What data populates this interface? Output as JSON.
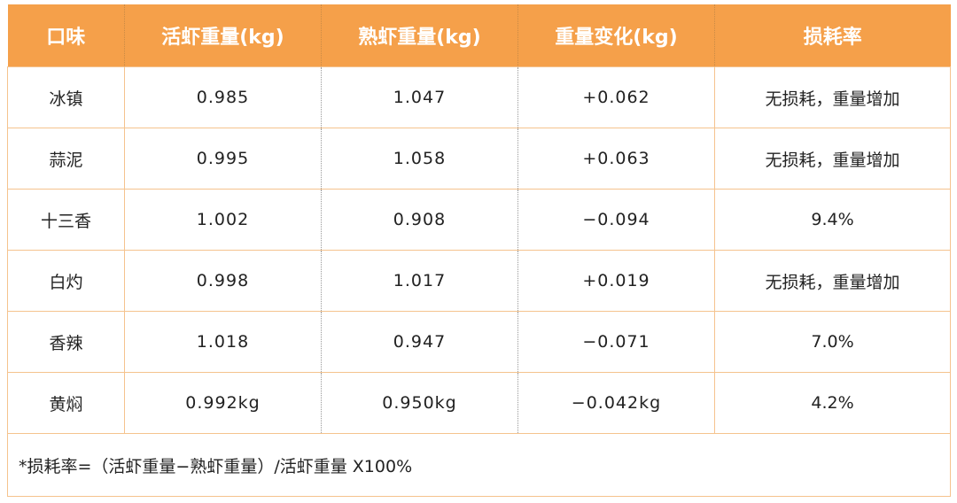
{
  "table": {
    "header": [
      "口味",
      "活虾重量(kg)",
      "熟虾重量(kg)",
      "重量变化(kg)",
      "损耗率"
    ],
    "rows": [
      [
        "冰镇",
        "0.985",
        "1.047",
        "+0.062",
        "无损耗，重量增加"
      ],
      [
        "蒜泥",
        "0.995",
        "1.058",
        "+0.063",
        "无损耗，重量增加"
      ],
      [
        "十三香",
        "1.002",
        "0.908",
        "−0.094",
        "9.4%"
      ],
      [
        "白灼",
        "0.998",
        "1.017",
        "+0.019",
        "无损耗，重量增加"
      ],
      [
        "香辣",
        "1.018",
        "0.947",
        "−0.071",
        "7.0%"
      ],
      [
        "黄焖",
        "0.992kg",
        "0.950kg",
        "−0.042kg",
        "4.2%"
      ]
    ],
    "footnote": "*损耗率=（活虾重量−熟虾重量）/活虾重量 X100%"
  }
}
